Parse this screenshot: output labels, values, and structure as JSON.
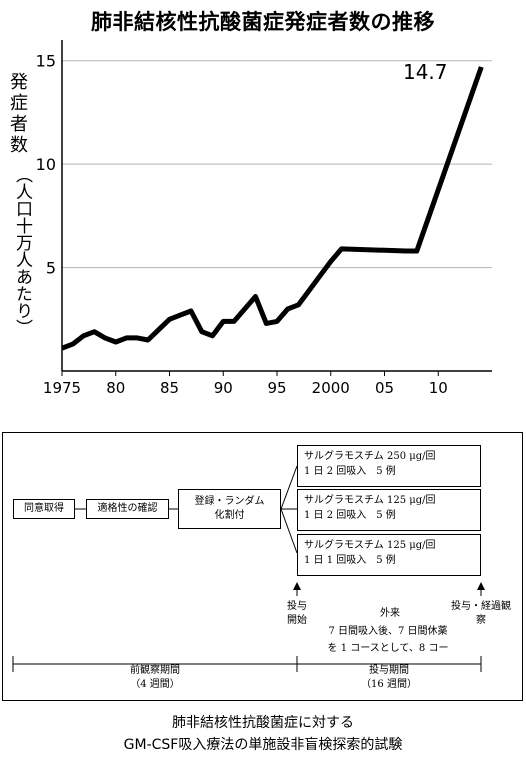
{
  "chart_data": {
    "type": "line",
    "title": "肺非結核性抗酸菌症発症者数の推移",
    "ylabel_main": "発症者数",
    "ylabel_unit": "（人口十万人あたり）",
    "xlabel": "",
    "ylim": [
      0,
      16
    ],
    "xlim": [
      1975,
      2015
    ],
    "grid": "horizontal",
    "y_ticks": [
      5,
      10,
      15
    ],
    "y_tick_labels": [
      "5",
      "10",
      "15"
    ],
    "x_ticks": [
      1975,
      1980,
      1985,
      1990,
      1995,
      2000,
      2005,
      2010
    ],
    "x_tick_labels": [
      "1975",
      "80",
      "85",
      "90",
      "95",
      "2000",
      "05",
      "10"
    ],
    "annotation": "14.7",
    "color": "#000000",
    "x": [
      1975,
      1976,
      1977,
      1978,
      1979,
      1980,
      1981,
      1982,
      1983,
      1984,
      1985,
      1986,
      1987,
      1988,
      1989,
      1990,
      1991,
      1992,
      1993,
      1994,
      1995,
      1996,
      1997,
      1998,
      1999,
      2000,
      2001,
      2007,
      2008,
      2014
    ],
    "y": [
      1.1,
      1.3,
      1.7,
      1.9,
      1.6,
      1.4,
      1.6,
      1.6,
      1.5,
      2.0,
      2.5,
      2.7,
      2.9,
      1.9,
      1.7,
      2.4,
      2.4,
      3.0,
      3.6,
      2.3,
      2.4,
      3.0,
      3.2,
      3.9,
      4.6,
      5.3,
      5.9,
      5.8,
      5.8,
      14.7
    ]
  },
  "diagram": {
    "consent": "同意取得",
    "eligibility": "適格性の確認",
    "register_line1": "登録・ランダム",
    "register_line2": "化割付",
    "arms": [
      {
        "line1": "サルグラモスチム 250 μg/回",
        "line2": "1 日 2 回吸入　5 例"
      },
      {
        "line1": "サルグラモスチム 125 μg/回",
        "line2": "1 日 2 回吸入　5 例"
      },
      {
        "line1": "サルグラモスチム 125 μg/回",
        "line2": "1 日 1 回吸入　5 例"
      }
    ],
    "start_line1": "投与",
    "start_line2": "開始",
    "outpatient": "外来",
    "end_line1": "投与・経過観",
    "end_line2": "察",
    "schedule_line1": "7 日間吸入後、7 日間休薬",
    "schedule_line2": "を 1 コースとして、8 コー",
    "pre_period": "前観察期間",
    "pre_weeks": "（4 週間）",
    "dosing_period": "投与期間",
    "dosing_weeks": "（16 週間）"
  },
  "caption": {
    "line1": "肺非結核性抗酸菌症に対する",
    "line2": "GM-CSF吸入療法の単施設非盲検探索的試験"
  }
}
